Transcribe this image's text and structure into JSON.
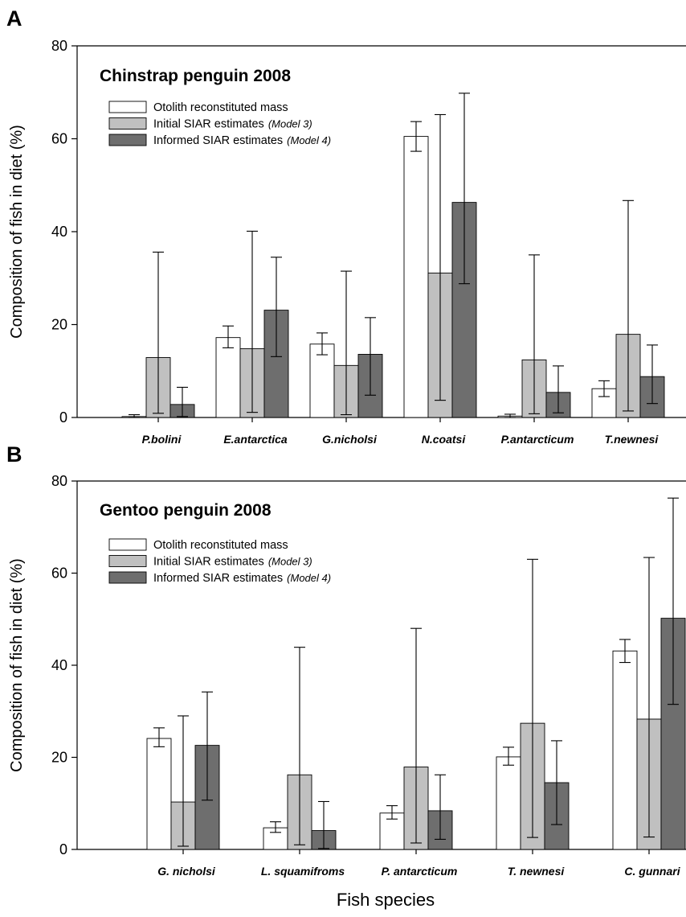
{
  "series_colors": [
    "#ffffff",
    "#c0c0c0",
    "#6e6e6e"
  ],
  "chart_data": [
    {
      "panel": "A",
      "type": "bar",
      "title": "Chinstrap penguin 2008",
      "ylabel": "Composition of fish in diet (%)",
      "xlabel": "",
      "ylim": [
        0,
        80
      ],
      "yticks": [
        0,
        20,
        40,
        60,
        80
      ],
      "categories": [
        "P.bolini",
        "E.antarctica",
        "G.nicholsi",
        "N.coatsi",
        "P.antarcticum",
        "T.newnesi"
      ],
      "legend_position": "top-left",
      "series": [
        {
          "name": "Otolith reconstituted mass",
          "note": "",
          "values": [
            0.2,
            17.2,
            15.8,
            60.5,
            0.3,
            6.2
          ],
          "err_low": [
            0,
            15,
            13.5,
            57.3,
            0,
            4.5
          ],
          "err_high": [
            0.6,
            19.7,
            18.2,
            63.7,
            0.7,
            7.9
          ]
        },
        {
          "name": "Initial SIAR estimates",
          "note": "(Model 3)",
          "values": [
            12.9,
            14.8,
            11.2,
            31.1,
            12.4,
            17.9
          ],
          "err_low": [
            0.9,
            1.1,
            0.6,
            3.7,
            0.8,
            1.4
          ],
          "err_high": [
            35.6,
            40.1,
            31.5,
            65.2,
            35.0,
            46.7
          ]
        },
        {
          "name": "Informed SIAR estimates",
          "note": "(Model 4)",
          "values": [
            2.8,
            23.1,
            13.6,
            46.3,
            5.4,
            8.8
          ],
          "err_low": [
            0.2,
            13.1,
            4.8,
            28.8,
            1.0,
            3.0
          ],
          "err_high": [
            6.5,
            34.5,
            21.5,
            69.8,
            11.1,
            15.6
          ]
        }
      ]
    },
    {
      "panel": "B",
      "type": "bar",
      "title": "Gentoo penguin 2008",
      "ylabel": "Composition of fish in diet (%)",
      "xlabel": "Fish species",
      "ylim": [
        0,
        80
      ],
      "yticks": [
        0,
        20,
        40,
        60,
        80
      ],
      "categories": [
        "G. nicholsi",
        "L. squamifroms",
        "P. antarcticum",
        "T. newnesi",
        "C. gunnari"
      ],
      "legend_position": "top-left",
      "series": [
        {
          "name": "Otolith reconstituted mass",
          "note": "",
          "values": [
            24.1,
            4.7,
            7.9,
            20.1,
            43.1
          ],
          "err_low": [
            22.3,
            3.7,
            6.6,
            18.3,
            40.6
          ],
          "err_high": [
            26.4,
            6.0,
            9.5,
            22.2,
            45.6
          ]
        },
        {
          "name": "Initial SIAR estimates",
          "note": "(Model 3)",
          "values": [
            10.3,
            16.2,
            17.9,
            27.4,
            28.3
          ],
          "err_low": [
            0.7,
            1.0,
            1.4,
            2.6,
            2.7
          ],
          "err_high": [
            29.0,
            43.9,
            48.0,
            63.0,
            63.4
          ]
        },
        {
          "name": "Informed SIAR estimates",
          "note": "(Model 4)",
          "values": [
            22.6,
            4.1,
            8.4,
            14.5,
            50.2
          ],
          "err_low": [
            10.7,
            0.2,
            2.2,
            5.4,
            31.5
          ],
          "err_high": [
            34.2,
            10.4,
            16.2,
            23.6,
            76.3
          ]
        }
      ]
    }
  ]
}
